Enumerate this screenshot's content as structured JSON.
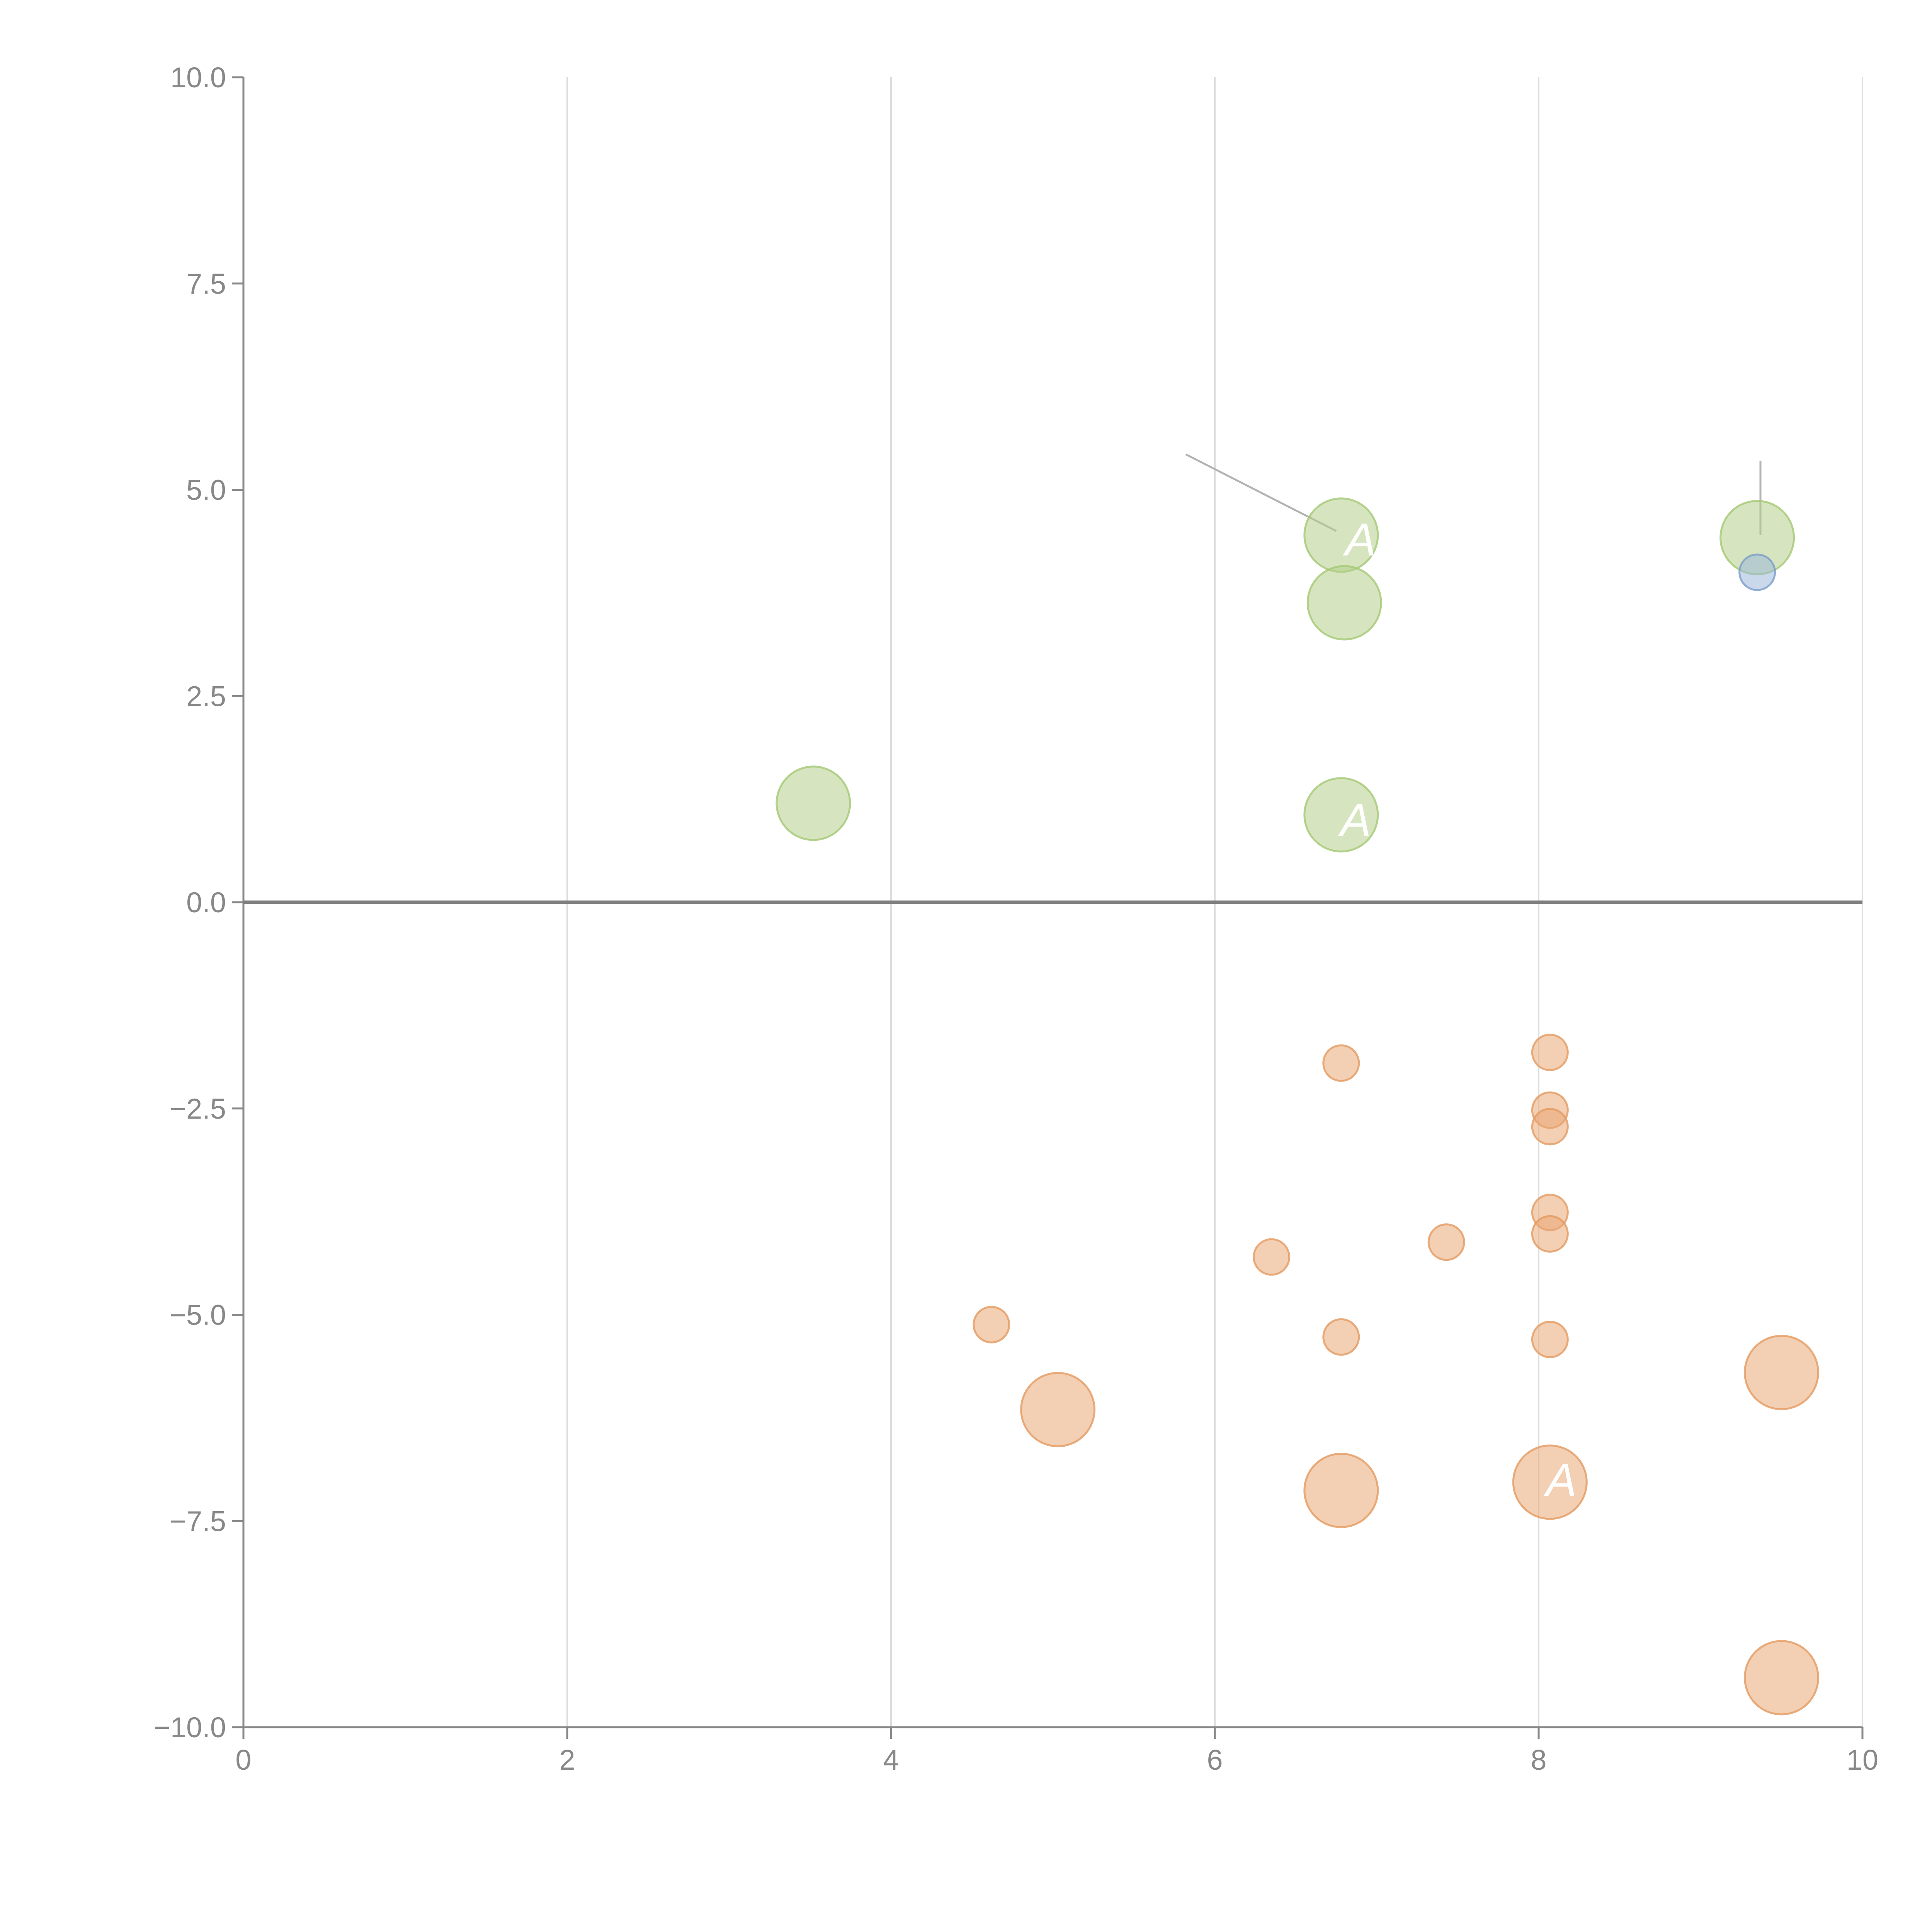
{
  "chart_data": {
    "type": "scatter",
    "title": "",
    "xlabel": "",
    "ylabel": "",
    "xlim": [
      0,
      10
    ],
    "ylim": [
      -10,
      10
    ],
    "x_ticks": [
      0,
      2,
      4,
      6,
      8,
      10
    ],
    "x_tick_labels": [
      "0",
      "2",
      "4",
      "6",
      "8",
      "10"
    ],
    "y_ticks": [
      10,
      7.5,
      5,
      2.5,
      0,
      -2.5,
      -5,
      -7.5,
      -10
    ],
    "y_tick_labels": [
      "10.0",
      "7.5",
      "5.0",
      "2.5",
      "0.0",
      "−2.5",
      "−5.0",
      "−7.5",
      "−10.0"
    ],
    "grid": "vertical",
    "zero_line": true,
    "legend": "none",
    "colors": {
      "green_fill": "#b5d08a",
      "green_stroke": "#a4c874",
      "orange_fill": "#e9a774",
      "orange_stroke": "#e39a60",
      "blue_fill": "#9db8d9",
      "blue_stroke": "#7a9ccb",
      "axis": "#888888",
      "grid": "#dddddd",
      "zero_line": "#7f7f7f",
      "leader": "#b3b3b3",
      "background": "#ffffff"
    },
    "series": [
      {
        "name": "green",
        "color_key": "green",
        "points": [
          {
            "x": 6.78,
            "y": 4.45,
            "size": 3
          },
          {
            "x": 6.8,
            "y": 3.63,
            "size": 3
          },
          {
            "x": 9.35,
            "y": 4.42,
            "size": 3
          },
          {
            "x": 3.52,
            "y": 1.2,
            "size": 3
          },
          {
            "x": 6.78,
            "y": 1.06,
            "size": 3
          }
        ]
      },
      {
        "name": "blue",
        "color_key": "blue",
        "points": [
          {
            "x": 9.35,
            "y": 4.0,
            "size": 1
          }
        ]
      },
      {
        "name": "orange",
        "color_key": "orange",
        "points": [
          {
            "x": 8.07,
            "y": -1.82,
            "size": 1
          },
          {
            "x": 6.78,
            "y": -1.95,
            "size": 1
          },
          {
            "x": 8.07,
            "y": -2.52,
            "size": 1
          },
          {
            "x": 8.07,
            "y": -2.72,
            "size": 1
          },
          {
            "x": 8.07,
            "y": -3.76,
            "size": 1
          },
          {
            "x": 8.07,
            "y": -4.02,
            "size": 1
          },
          {
            "x": 7.43,
            "y": -4.12,
            "size": 1
          },
          {
            "x": 6.35,
            "y": -4.3,
            "size": 1
          },
          {
            "x": 4.62,
            "y": -5.12,
            "size": 1
          },
          {
            "x": 6.78,
            "y": -5.27,
            "size": 1
          },
          {
            "x": 8.07,
            "y": -5.3,
            "size": 1
          },
          {
            "x": 9.5,
            "y": -5.7,
            "size": 3
          },
          {
            "x": 5.03,
            "y": -6.15,
            "size": 3
          },
          {
            "x": 6.78,
            "y": -7.13,
            "size": 3
          },
          {
            "x": 8.07,
            "y": -7.03,
            "size": 3
          },
          {
            "x": 9.5,
            "y": -9.4,
            "size": 3
          }
        ]
      }
    ],
    "leader_lines": [
      {
        "x1": 5.82,
        "y1": 5.43,
        "x2": 6.75,
        "y2": 4.5,
        "color_key": "leader"
      },
      {
        "x1": 9.37,
        "y1": 5.35,
        "x2": 9.37,
        "y2": 4.45,
        "color_key": "leader"
      }
    ],
    "annotations": [
      {
        "text": "A",
        "x": 6.9,
        "y": 4.4
      },
      {
        "text": "A",
        "x": 6.87,
        "y": 1.0
      },
      {
        "text": "A",
        "x": 8.14,
        "y": -7.0
      }
    ]
  }
}
